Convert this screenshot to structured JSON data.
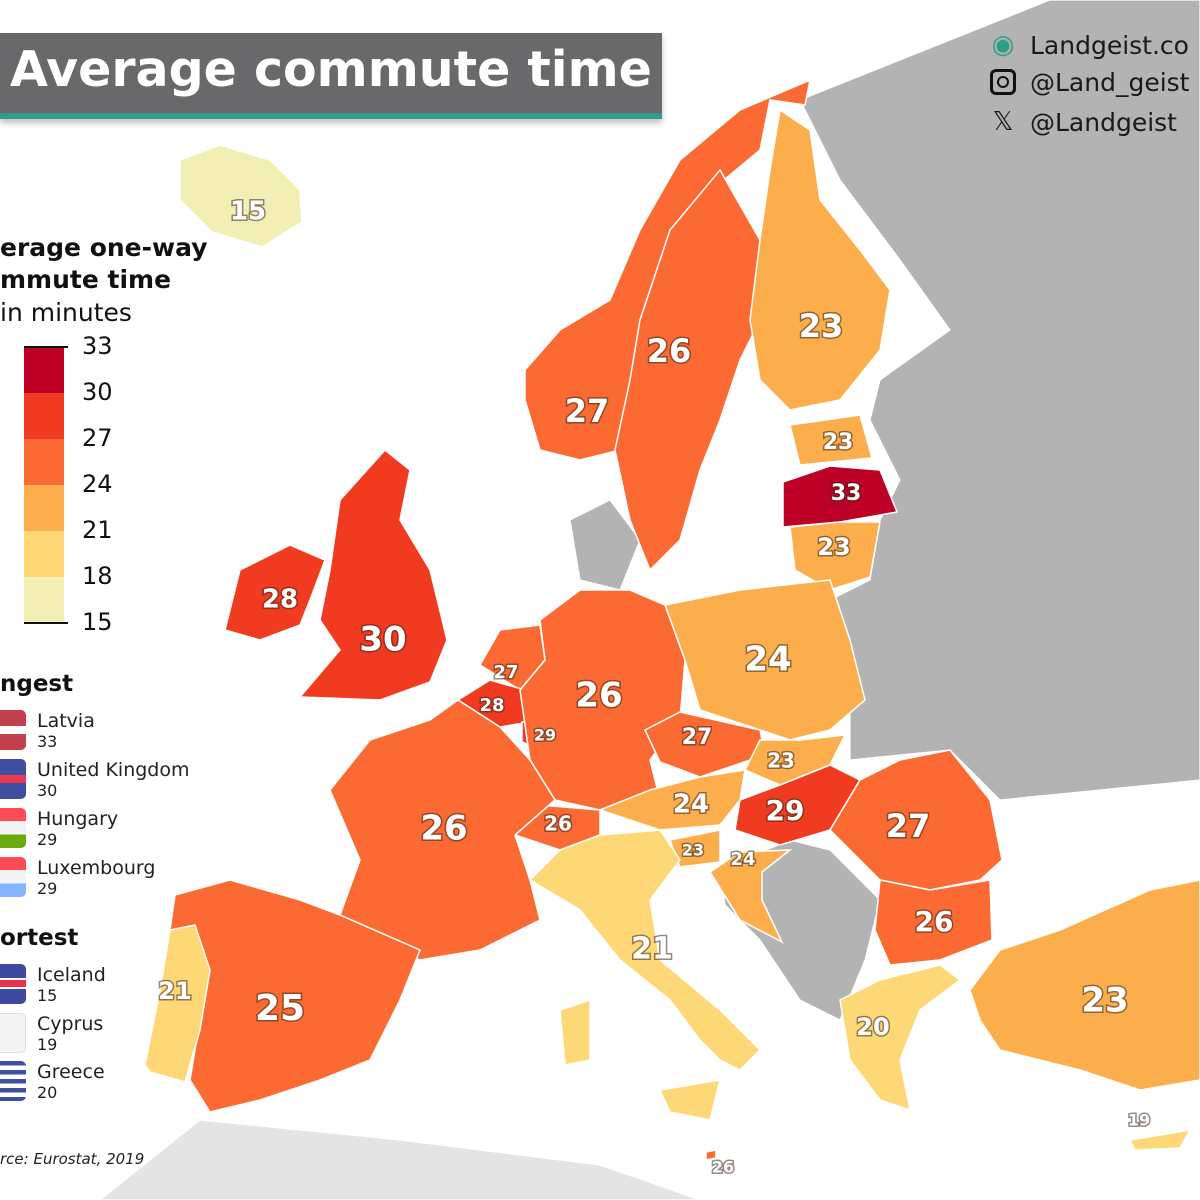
{
  "title": "Average commute time",
  "social": [
    {
      "icon": "landgeist-globe-icon",
      "text": "Landgeist.co"
    },
    {
      "icon": "instagram-icon",
      "text": "@Land_geist"
    },
    {
      "icon": "x-twitter-icon",
      "text": "@Landgeist"
    }
  ],
  "legend": {
    "title_line1": "erage one-way",
    "title_line2": "mmute time",
    "subtitle": "in minutes",
    "ticks": [
      "33",
      "30",
      "27",
      "24",
      "21",
      "18",
      "15"
    ],
    "bins": [
      {
        "min": 30,
        "max": 33,
        "color": "#bd0026"
      },
      {
        "min": 27,
        "max": 30,
        "color": "#f03b20"
      },
      {
        "min": 24,
        "max": 27,
        "color": "#fa6a32"
      },
      {
        "min": 21,
        "max": 24,
        "color": "#fcae4c"
      },
      {
        "min": 18,
        "max": 21,
        "color": "#fed876"
      },
      {
        "min": 15,
        "max": 18,
        "color": "#f3efb4"
      }
    ],
    "no_data_color": "#b3b3b3"
  },
  "longest": {
    "heading": "ngest",
    "items": [
      {
        "country": "Latvia",
        "value": "33"
      },
      {
        "country": "United Kingdom",
        "value": "30"
      },
      {
        "country": "Hungary",
        "value": "29"
      },
      {
        "country": "Luxembourg",
        "value": "29"
      }
    ]
  },
  "shortest": {
    "heading": "ortest",
    "items": [
      {
        "country": "Iceland",
        "value": "15"
      },
      {
        "country": "Cyprus",
        "value": "19"
      },
      {
        "country": "Greece",
        "value": "20"
      }
    ]
  },
  "source": "rce: Eurostat, 2019",
  "countries": [
    {
      "name": "Iceland",
      "value": 15
    },
    {
      "name": "Norway",
      "value": 27
    },
    {
      "name": "Sweden",
      "value": 26
    },
    {
      "name": "Finland",
      "value": 23
    },
    {
      "name": "Estonia",
      "value": 23
    },
    {
      "name": "Latvia",
      "value": 33
    },
    {
      "name": "Lithuania",
      "value": 23
    },
    {
      "name": "Ireland",
      "value": 28
    },
    {
      "name": "United Kingdom",
      "value": 30
    },
    {
      "name": "Netherlands",
      "value": 27
    },
    {
      "name": "Belgium",
      "value": 28
    },
    {
      "name": "Luxembourg",
      "value": 29
    },
    {
      "name": "Germany",
      "value": 26
    },
    {
      "name": "Poland",
      "value": 24
    },
    {
      "name": "Czechia",
      "value": 27
    },
    {
      "name": "Slovakia",
      "value": 23
    },
    {
      "name": "Austria",
      "value": 24
    },
    {
      "name": "Hungary",
      "value": 29
    },
    {
      "name": "Romania",
      "value": 27
    },
    {
      "name": "Switzerland",
      "value": 26
    },
    {
      "name": "Slovenia",
      "value": 23
    },
    {
      "name": "Croatia",
      "value": 24
    },
    {
      "name": "France",
      "value": 26
    },
    {
      "name": "Bulgaria",
      "value": 26
    },
    {
      "name": "Italy",
      "value": 21
    },
    {
      "name": "Greece",
      "value": 20
    },
    {
      "name": "Turkey",
      "value": 23
    },
    {
      "name": "Spain",
      "value": 25
    },
    {
      "name": "Portugal",
      "value": 21
    },
    {
      "name": "Cyprus",
      "value": 19
    },
    {
      "name": "Malta",
      "value": 26
    }
  ]
}
